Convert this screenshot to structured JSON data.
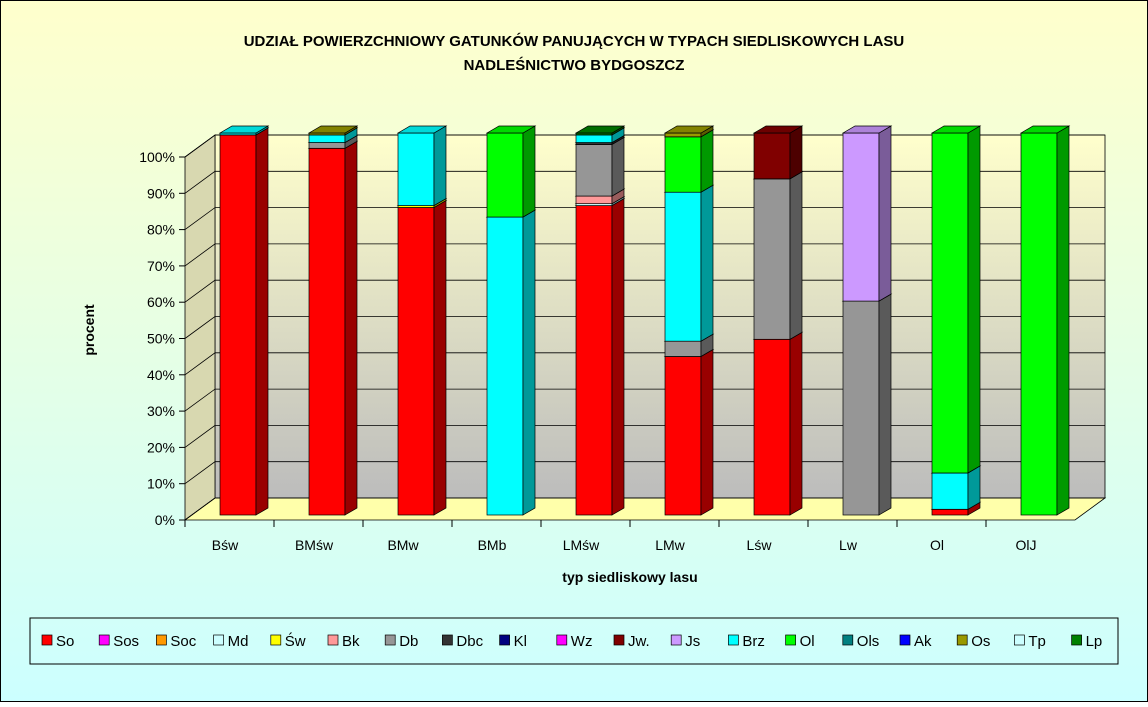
{
  "chart_data": {
    "type": "stacked_bar_3d",
    "title": "UDZIAŁ POWIERZCHNIOWY GATUNKÓW PANUJĄCYCH W TYPACH SIEDLISKOWYCH LASU",
    "subtitle": "NADLEŚNICTWO BYDGOSZCZ",
    "ylabel": "procent",
    "xlabel": "typ siedliskowy lasu",
    "categories": [
      "Bśw",
      "BMśw",
      "BMw",
      "BMb",
      "LMśw",
      "LMw",
      "Lśw",
      "Lw",
      "Ol",
      "OlJ"
    ],
    "ylim": [
      0,
      100
    ],
    "yticks": [
      {
        "value": 0,
        "label": "0%"
      },
      {
        "value": 10,
        "label": "10%"
      },
      {
        "value": 20,
        "label": "20%"
      },
      {
        "value": 30,
        "label": "30%"
      },
      {
        "value": 40,
        "label": "40%"
      },
      {
        "value": 50,
        "label": "50%"
      },
      {
        "value": 60,
        "label": "60%"
      },
      {
        "value": 70,
        "label": "70%"
      },
      {
        "value": 80,
        "label": "80%"
      },
      {
        "value": 90,
        "label": "90%"
      },
      {
        "value": 100,
        "label": "100%"
      }
    ],
    "grid": true,
    "legend": "bottom",
    "series": [
      {
        "name": "So",
        "color": "#ff0000",
        "values": [
          99.5,
          96,
          80.5,
          0,
          81,
          41.5,
          46,
          0,
          1.5,
          0
        ]
      },
      {
        "name": "Sos",
        "color": "#ff00ff",
        "values": [
          0,
          0,
          0,
          0,
          0,
          0,
          0,
          0,
          0,
          0
        ]
      },
      {
        "name": "Soc",
        "color": "#ff9900",
        "values": [
          0,
          0,
          0,
          0,
          0,
          0,
          0,
          0,
          0,
          0
        ]
      },
      {
        "name": "Md",
        "color": "#ccffff",
        "values": [
          0,
          0,
          0,
          0,
          0.5,
          0,
          0,
          0,
          0,
          0
        ]
      },
      {
        "name": "Św",
        "color": "#ffff00",
        "values": [
          0,
          0,
          0.5,
          0,
          0,
          0,
          0,
          0,
          0,
          0
        ]
      },
      {
        "name": "Bk",
        "color": "#ff9999",
        "values": [
          0,
          0,
          0,
          0,
          2,
          0,
          0,
          0,
          0,
          0
        ]
      },
      {
        "name": "Db",
        "color": "#969696",
        "values": [
          0,
          1.5,
          0,
          0,
          13.5,
          4,
          42,
          56,
          0,
          0
        ]
      },
      {
        "name": "Dbc",
        "color": "#333333",
        "values": [
          0,
          0,
          0,
          0,
          0.5,
          0,
          0,
          0,
          0,
          0
        ]
      },
      {
        "name": "Kl",
        "color": "#000080",
        "values": [
          0,
          0,
          0,
          0,
          0,
          0,
          0,
          0,
          0,
          0
        ]
      },
      {
        "name": "Wz",
        "color": "#ff00ff",
        "values": [
          0,
          0,
          0,
          0,
          0,
          0,
          0,
          0,
          0,
          0
        ]
      },
      {
        "name": "Jw.",
        "color": "#800000",
        "values": [
          0,
          0,
          0,
          0,
          0,
          0,
          12,
          0,
          0,
          0
        ]
      },
      {
        "name": "Js",
        "color": "#cc99ff",
        "values": [
          0,
          0,
          0,
          0,
          0,
          0,
          0,
          44,
          0,
          0
        ]
      },
      {
        "name": "Brz",
        "color": "#00ffff",
        "values": [
          0.5,
          2,
          19,
          78,
          2,
          39,
          0,
          0,
          9.5,
          0
        ]
      },
      {
        "name": "Ol",
        "color": "#00ff00",
        "values": [
          0,
          0,
          0,
          22,
          0,
          14.5,
          0,
          0,
          89,
          100
        ]
      },
      {
        "name": "Ols",
        "color": "#008080",
        "values": [
          0,
          0,
          0,
          0,
          0,
          0,
          0,
          0,
          0,
          0
        ]
      },
      {
        "name": "Ak",
        "color": "#0000ff",
        "values": [
          0,
          0,
          0,
          0,
          0,
          0,
          0,
          0,
          0,
          0
        ]
      },
      {
        "name": "Os",
        "color": "#999900",
        "values": [
          0,
          0.5,
          0,
          0,
          0,
          1,
          0,
          0,
          0,
          0
        ]
      },
      {
        "name": "Tp",
        "color": "#ccffff",
        "values": [
          0,
          0,
          0,
          0,
          0,
          0,
          0,
          0,
          0,
          0
        ]
      },
      {
        "name": "Lp",
        "color": "#008000",
        "values": [
          0,
          0,
          0,
          0,
          0.5,
          0,
          0,
          0,
          0,
          0
        ]
      }
    ]
  }
}
